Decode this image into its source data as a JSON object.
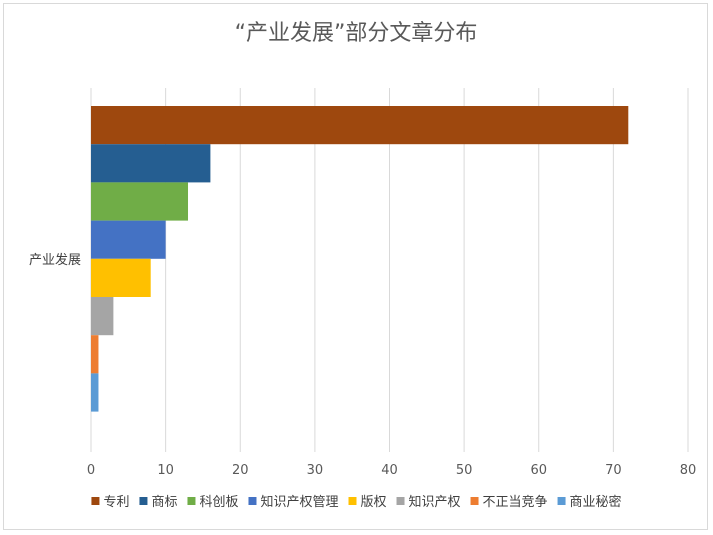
{
  "chart_data": {
    "type": "bar",
    "orientation": "horizontal",
    "title": "“产业发展”部分文章分布",
    "categories": [
      "产业发展"
    ],
    "series": [
      {
        "name": "专利",
        "values": [
          72
        ],
        "color": "#9e480e"
      },
      {
        "name": "商标",
        "values": [
          16
        ],
        "color": "#255e91"
      },
      {
        "name": "科创板",
        "values": [
          13
        ],
        "color": "#70ad47"
      },
      {
        "name": "知识产权管理",
        "values": [
          10
        ],
        "color": "#4472c4"
      },
      {
        "name": "版权",
        "values": [
          8
        ],
        "color": "#ffc000"
      },
      {
        "name": "知识产权",
        "values": [
          3
        ],
        "color": "#a5a5a5"
      },
      {
        "name": "不正当竞争",
        "values": [
          1
        ],
        "color": "#ed7d31"
      },
      {
        "name": "商业秘密",
        "values": [
          1
        ],
        "color": "#5b9bd5"
      }
    ],
    "xlim": [
      0,
      80
    ],
    "xticks": [
      0,
      10,
      20,
      30,
      40,
      50,
      60,
      70,
      80
    ],
    "grid": true,
    "legend_position": "bottom"
  }
}
